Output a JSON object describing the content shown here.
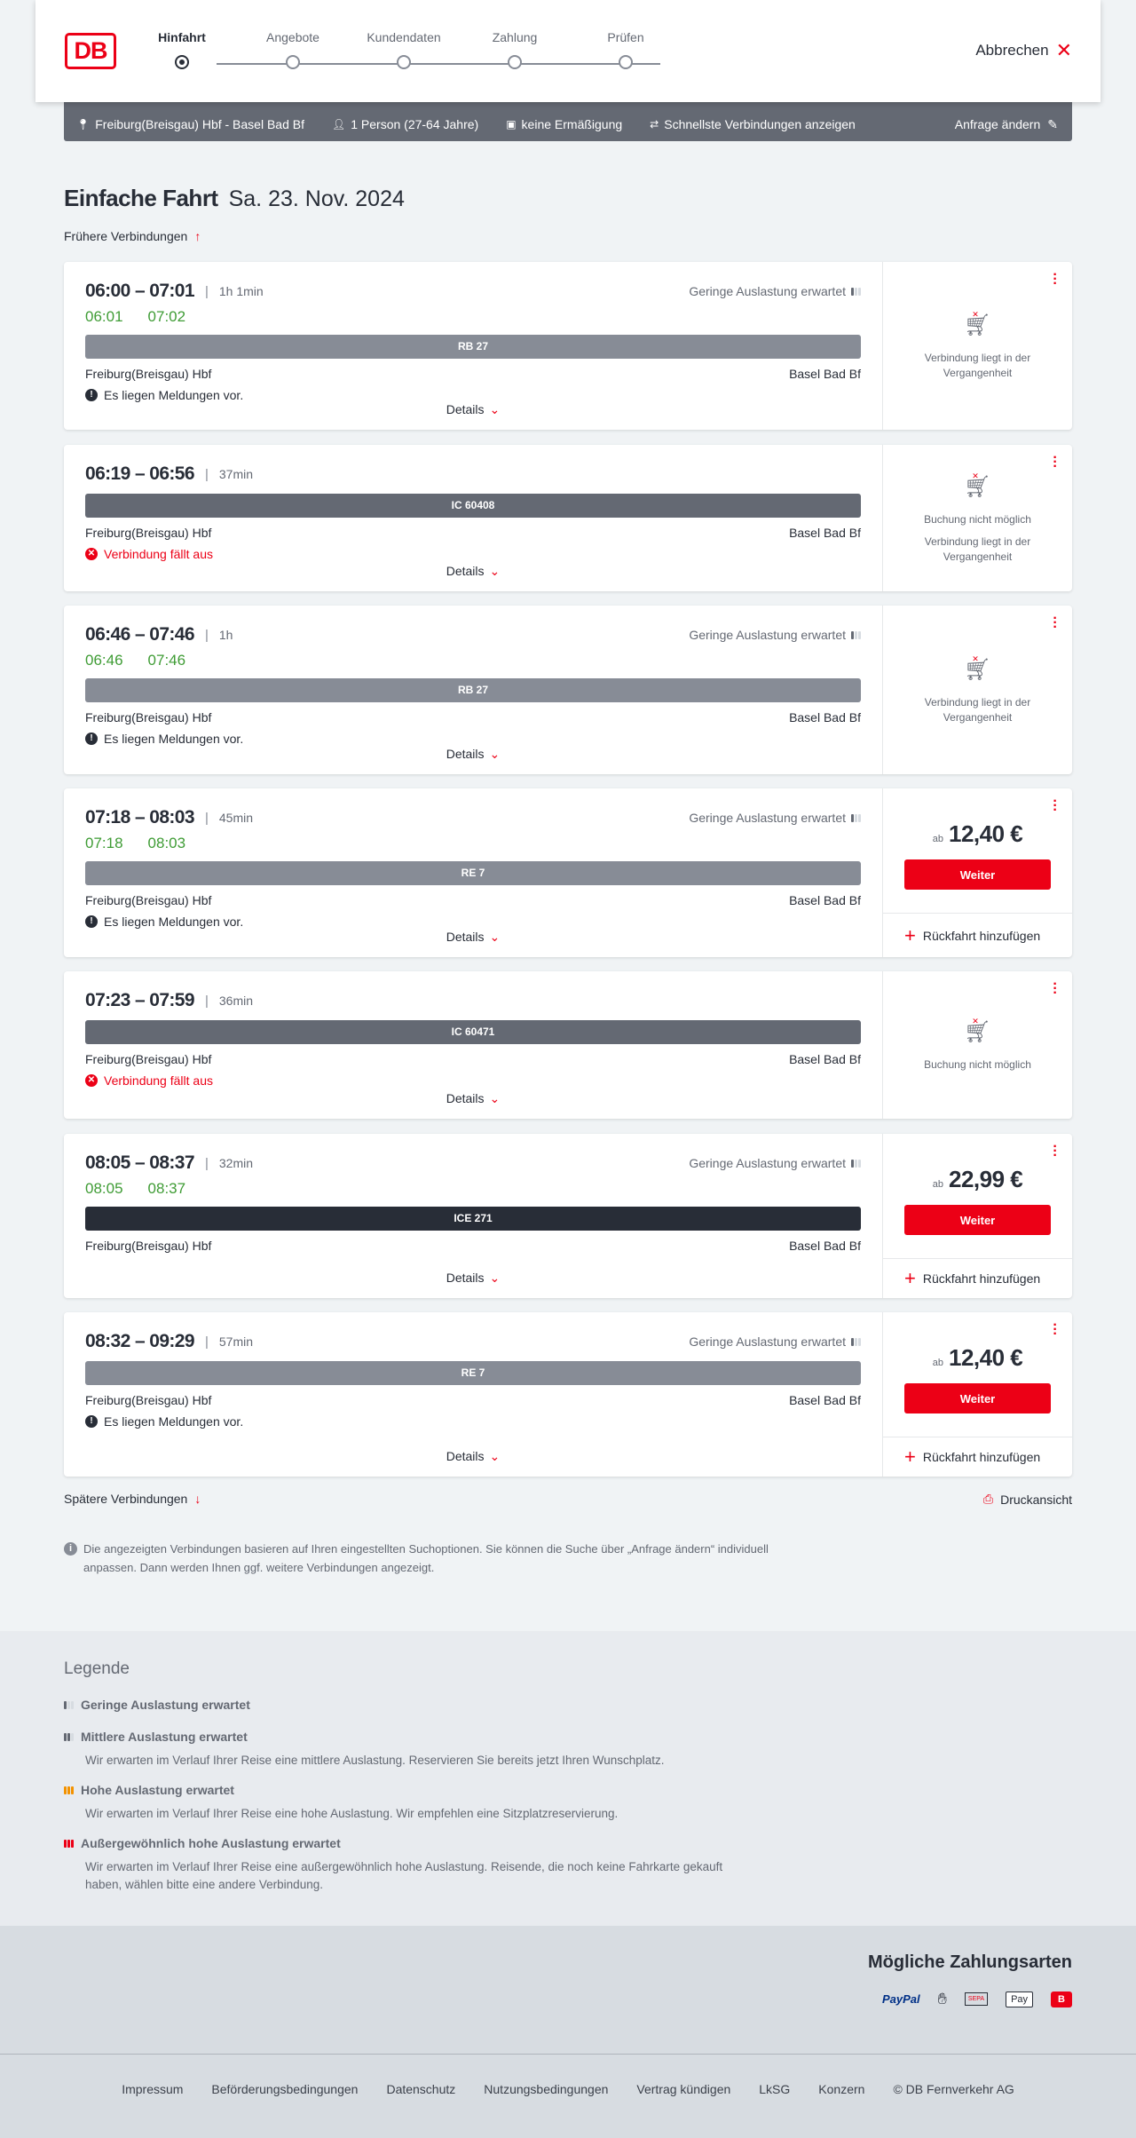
{
  "header": {
    "logo": "DB",
    "cancel": "Abbrechen",
    "steps": [
      "Hinfahrt",
      "Angebote",
      "Kundendaten",
      "Zahlung",
      "Prüfen"
    ],
    "active_step": 0
  },
  "query": {
    "route": "Freiburg(Breisgau) Hbf - Basel Bad Bf",
    "persons": "1 Person (27-64 Jahre)",
    "discount": "keine Ermäßigung",
    "fastest": "Schnellste Verbindungen anzeigen",
    "edit": "Anfrage ändern"
  },
  "page": {
    "title": "Einfache Fahrt",
    "date": "Sa. 23. Nov. 2024",
    "earlier": "Frühere Verbindungen",
    "later": "Spätere Verbindungen",
    "print": "Druckansicht",
    "note": "Die angezeigten Verbindungen basieren auf Ihren eingestellten Suchoptionen. Sie können die Suche über „Anfrage ändern“ individuell anpassen. Dann werden Ihnen ggf. weitere Verbindungen angezeigt."
  },
  "labels": {
    "details": "Details",
    "weiter": "Weiter",
    "ab": "ab",
    "return": "Rückfahrt hinzufügen"
  },
  "colors": {
    "accent": "#ec0016",
    "regional": "#878c96",
    "ic": "#646973",
    "ice": "#282d37",
    "realtime": "#3f9c35"
  },
  "connections": [
    {
      "time": "06:00 – 07:01",
      "duration": "1h 1min",
      "occupancy": "Geringe Auslastung erwartet",
      "rt_dep": "06:01",
      "rt_arr": "07:02",
      "train": "RB 27",
      "train_type": "regional",
      "from": "Freiburg(Breisgau) Hbf",
      "to": "Basel Bad Bf",
      "message": "Es liegen Meldungen vor.",
      "message_type": "info",
      "status": [
        "Verbindung liegt in der Vergangenheit"
      ]
    },
    {
      "time": "06:19 – 06:56",
      "duration": "37min",
      "train": "IC 60408",
      "train_type": "ic",
      "from": "Freiburg(Breisgau) Hbf",
      "to": "Basel Bad Bf",
      "message": "Verbindung fällt aus",
      "message_type": "cancel",
      "status": [
        "Buchung nicht möglich",
        "Verbindung liegt in der Vergangenheit"
      ]
    },
    {
      "time": "06:46 – 07:46",
      "duration": "1h",
      "occupancy": "Geringe Auslastung erwartet",
      "rt_dep": "06:46",
      "rt_arr": "07:46",
      "train": "RB 27",
      "train_type": "regional",
      "from": "Freiburg(Breisgau) Hbf",
      "to": "Basel Bad Bf",
      "message": "Es liegen Meldungen vor.",
      "message_type": "info",
      "status": [
        "Verbindung liegt in der Vergangenheit"
      ]
    },
    {
      "time": "07:18 – 08:03",
      "duration": "45min",
      "occupancy": "Geringe Auslastung erwartet",
      "rt_dep": "07:18",
      "rt_arr": "08:03",
      "train": "RE 7",
      "train_type": "regional",
      "from": "Freiburg(Breisgau) Hbf",
      "to": "Basel Bad Bf",
      "message": "Es liegen Meldungen vor.",
      "message_type": "info",
      "price": "12,40 €"
    },
    {
      "time": "07:23 – 07:59",
      "duration": "36min",
      "train": "IC 60471",
      "train_type": "ic",
      "from": "Freiburg(Breisgau) Hbf",
      "to": "Basel Bad Bf",
      "message": "Verbindung fällt aus",
      "message_type": "cancel",
      "status": [
        "Buchung nicht möglich"
      ]
    },
    {
      "time": "08:05 – 08:37",
      "duration": "32min",
      "occupancy": "Geringe Auslastung erwartet",
      "rt_dep": "08:05",
      "rt_arr": "08:37",
      "train": "ICE 271",
      "train_type": "ice",
      "from": "Freiburg(Breisgau) Hbf",
      "to": "Basel Bad Bf",
      "price": "22,99 €"
    },
    {
      "time": "08:32 – 09:29",
      "duration": "57min",
      "occupancy": "Geringe Auslastung erwartet",
      "train": "RE 7",
      "train_type": "regional",
      "from": "Freiburg(Breisgau) Hbf",
      "to": "Basel Bad Bf",
      "message": "Es liegen Meldungen vor.",
      "message_type": "info",
      "price": "12,40 €"
    }
  ],
  "legend": {
    "title": "Legende",
    "items": [
      {
        "title": "Geringe Auslastung erwartet",
        "text": "",
        "level": 1,
        "color": "#646973"
      },
      {
        "title": "Mittlere Auslastung erwartet",
        "text": "Wir erwarten im Verlauf Ihrer Reise eine mittlere Auslastung. Reservieren Sie bereits jetzt Ihren Wunschplatz.",
        "level": 2,
        "color": "#646973"
      },
      {
        "title": "Hohe Auslastung erwartet",
        "text": "Wir erwarten im Verlauf Ihrer Reise eine hohe Auslastung. Wir empfehlen eine Sitzplatzreservierung.",
        "level": 3,
        "color": "#f39200"
      },
      {
        "title": "Außergewöhnlich hohe Auslastung erwartet",
        "text": "Wir erwarten im Verlauf Ihrer Reise eine außergewöhnlich hohe Auslastung. Reisende, die noch keine Fahrkarte gekauft haben, wählen bitte eine andere Verbindung.",
        "level": 4,
        "color": "#ec0016"
      }
    ]
  },
  "payment": {
    "title": "Mögliche Zahlungsarten",
    "methods": [
      "PayPal",
      "Kreditkarte",
      "SEPA",
      "Pay",
      "Bahn.Bonus"
    ]
  },
  "footer": {
    "links": [
      "Impressum",
      "Beförderungsbedingungen",
      "Datenschutz",
      "Nutzungsbedingungen",
      "Vertrag kündigen",
      "LkSG",
      "Konzern",
      "© DB Fernverkehr AG"
    ]
  }
}
